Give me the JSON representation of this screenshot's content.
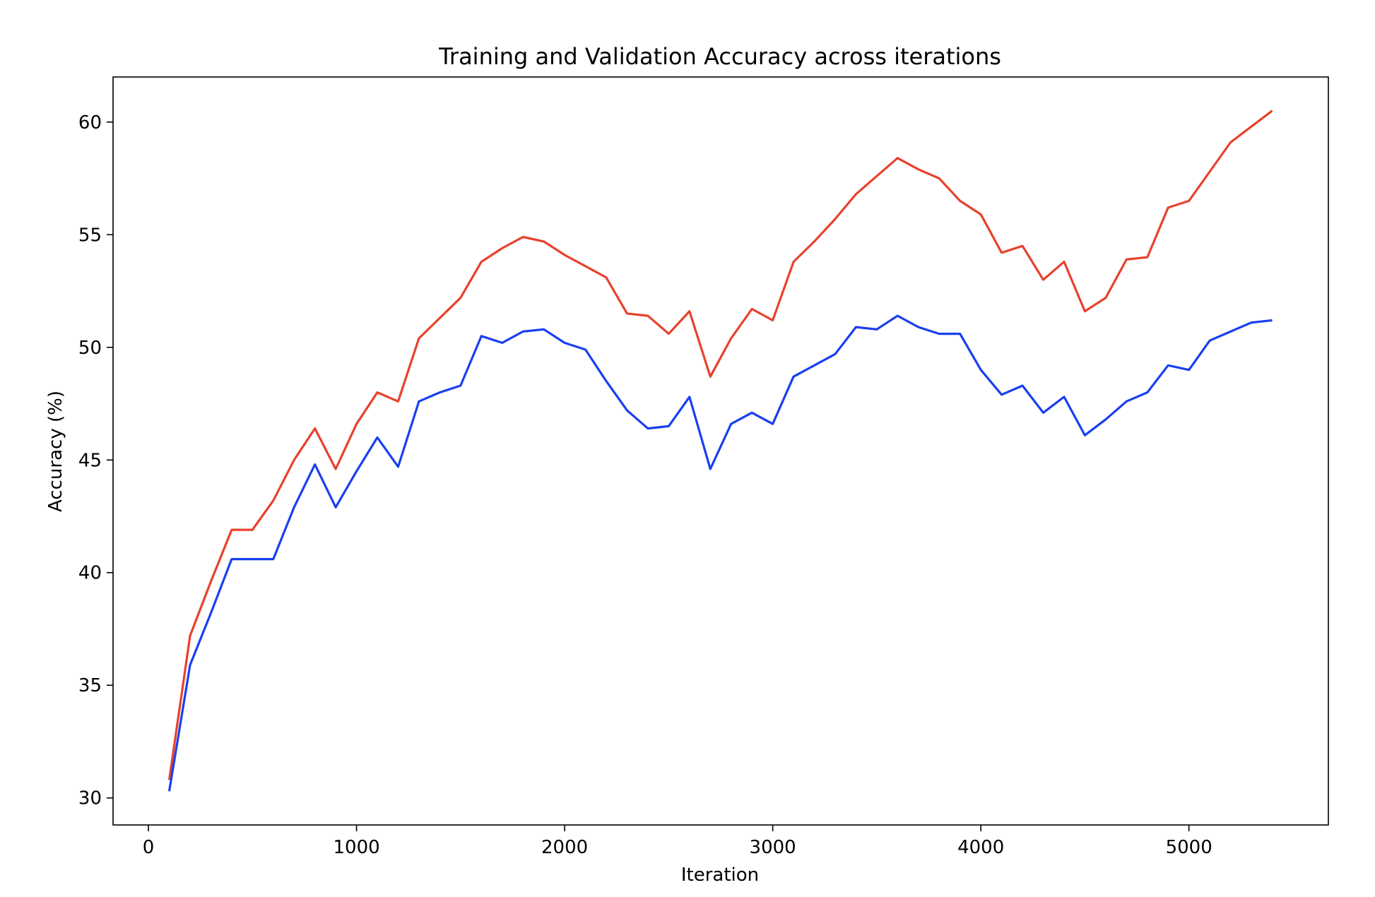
{
  "chart_data": {
    "type": "line",
    "title": "Training and Validation Accuracy across iterations",
    "xlabel": "Iteration",
    "ylabel": "Accuracy (%)",
    "xlim": [
      -170,
      5670
    ],
    "ylim": [
      28.8,
      62.0
    ],
    "xticks": [
      0,
      1000,
      2000,
      3000,
      4000,
      5000
    ],
    "yticks": [
      30,
      35,
      40,
      45,
      50,
      55,
      60
    ],
    "grid": false,
    "legend": "none",
    "x": [
      100,
      200,
      300,
      400,
      500,
      600,
      700,
      800,
      900,
      1000,
      1100,
      1200,
      1300,
      1400,
      1500,
      1600,
      1700,
      1800,
      1900,
      2000,
      2100,
      2200,
      2300,
      2400,
      2500,
      2600,
      2700,
      2800,
      2900,
      3000,
      3100,
      3200,
      3300,
      3400,
      3500,
      3600,
      3700,
      3800,
      3900,
      4000,
      4100,
      4200,
      4300,
      4400,
      4500,
      4600,
      4700,
      4800,
      4900,
      5000,
      5100,
      5200,
      5300,
      5400
    ],
    "series": [
      {
        "color": "#e8412c",
        "values": [
          30.8,
          37.2,
          39.6,
          41.9,
          41.9,
          43.2,
          45.0,
          46.4,
          44.6,
          46.6,
          48.0,
          47.6,
          50.4,
          51.3,
          52.2,
          53.8,
          54.4,
          54.9,
          54.7,
          54.1,
          53.6,
          53.1,
          51.5,
          51.4,
          50.6,
          51.6,
          48.7,
          50.4,
          51.7,
          51.2,
          53.8,
          54.7,
          55.7,
          56.8,
          57.6,
          58.4,
          57.9,
          57.5,
          56.5,
          55.9,
          54.2,
          54.5,
          53.0,
          53.8,
          51.6,
          52.2,
          53.9,
          54.0,
          56.2,
          56.5,
          57.8,
          59.1,
          59.8,
          60.5
        ]
      },
      {
        "color": "#1a3ff0",
        "values": [
          30.3,
          35.9,
          38.2,
          40.6,
          40.6,
          40.6,
          42.9,
          44.8,
          42.9,
          44.5,
          46.0,
          44.7,
          47.6,
          48.0,
          48.3,
          50.5,
          50.2,
          50.7,
          50.8,
          50.2,
          49.9,
          48.5,
          47.2,
          46.4,
          46.5,
          47.8,
          44.6,
          46.6,
          47.1,
          46.6,
          48.7,
          49.2,
          49.7,
          50.9,
          50.8,
          51.4,
          50.9,
          50.6,
          50.6,
          49.0,
          47.9,
          48.3,
          47.1,
          47.8,
          46.1,
          46.8,
          47.6,
          48.0,
          49.2,
          49.0,
          50.3,
          50.7,
          51.1,
          51.2
        ]
      }
    ]
  }
}
